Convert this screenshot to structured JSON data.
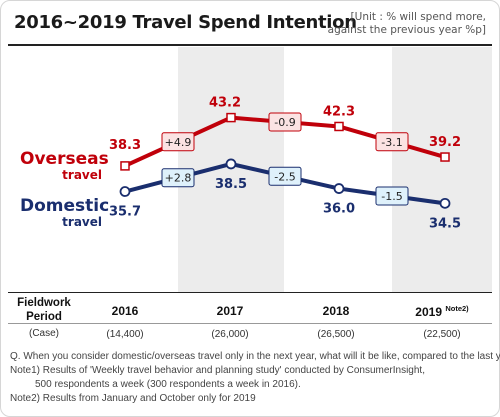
{
  "header": {
    "title": "2016~2019 Travel Spend Intention",
    "unit_line1": "[Unit : % will spend more,",
    "unit_line2": "against the previous year %p]"
  },
  "colors": {
    "overseas": "#c0000a",
    "domestic": "#1a2e6e",
    "shade": "#ececec",
    "change_overseas_bg": "#fbe3e3",
    "change_domestic_bg": "#dff1fb"
  },
  "chart_data": {
    "type": "line",
    "categories": [
      "2016",
      "2017",
      "2018",
      "2019"
    ],
    "shaded_categories": [
      "2017",
      "2019"
    ],
    "series": [
      {
        "name": "Overseas travel",
        "name_line1": "Overseas",
        "name_line2": "travel",
        "values": [
          38.3,
          43.2,
          42.3,
          39.2
        ],
        "value_labels": [
          "38.3",
          "43.2",
          "42.3",
          "39.2"
        ],
        "changes": [
          "+4.9",
          "-0.9",
          "-3.1"
        ]
      },
      {
        "name": "Domestic travel",
        "name_line1": "Domestic",
        "name_line2": "travel",
        "values": [
          35.7,
          38.5,
          36.0,
          34.5
        ],
        "value_labels": [
          "35.7",
          "38.5",
          "36.0",
          "34.5"
        ],
        "changes": [
          "+2.8",
          "-2.5",
          "-1.5"
        ]
      }
    ],
    "ylim": [
      32,
      46
    ],
    "grid": false,
    "legend": "left"
  },
  "table": {
    "fieldwork_line1": "Fieldwork",
    "fieldwork_line2": "Period",
    "case_label": "(Case)",
    "years": [
      "2016",
      "2017",
      "2018",
      "2019"
    ],
    "year_note": "Note2)",
    "cases": [
      "(14,400)",
      "(26,000)",
      "(26,500)",
      "(22,500)"
    ]
  },
  "footnotes": {
    "question": "Q. When you consider domestic/overseas travel only in the next year, what will it be like, compared to the last year?",
    "note1_line1": "Note1) Results of 'Weekly travel behavior and planning study' conducted by ConsumerInsight,",
    "note1_line2": "500 respondents a week (300  respondents a  week in 2016).",
    "note2": "Note2) Results from January and October only for 2019"
  }
}
